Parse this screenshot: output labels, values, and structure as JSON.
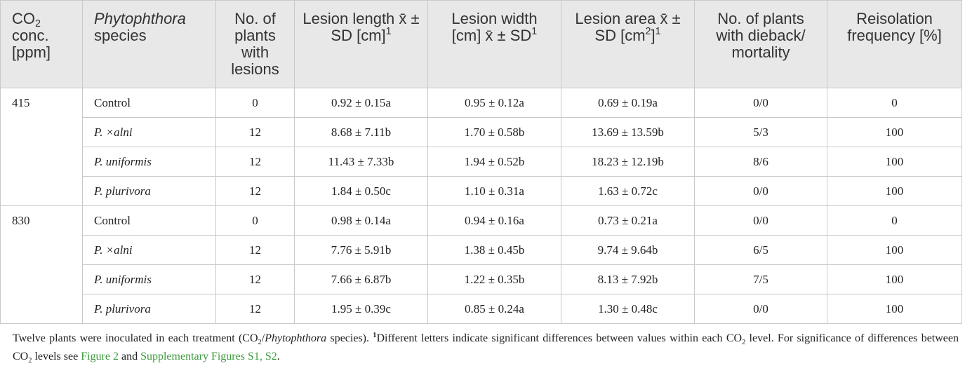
{
  "header": {
    "co2": [
      "CO",
      "2",
      " conc. [ppm]"
    ],
    "species": [
      "Phytophthora",
      " species"
    ],
    "plants": "No. of plants with lesions",
    "length": [
      "Lesion length x̄ ± SD [cm]",
      "1"
    ],
    "width": [
      "Lesion width [cm] x̄ ± SD",
      "1"
    ],
    "area": [
      "Lesion area x̄ ± SD [cm",
      "2",
      "]",
      "1"
    ],
    "dieback": "No. of plants with dieback/ mortality",
    "freq": "Reisolation frequency [%]"
  },
  "groups": [
    {
      "co2": "415",
      "rows": [
        [
          "Control",
          0,
          "0.92 ± 0.15a",
          "0.95 ± 0.12a",
          "0.69 ± 0.19a",
          "0/0",
          0
        ],
        [
          "P. ×alni",
          12,
          "8.68 ± 7.11b",
          "1.70 ± 0.58b",
          "13.69 ± 13.59b",
          "5/3",
          100
        ],
        [
          "P. uniformis",
          12,
          "11.43 ± 7.33b",
          "1.94 ± 0.52b",
          "18.23 ± 12.19b",
          "8/6",
          100
        ],
        [
          "P. plurivora",
          12,
          "1.84 ± 0.50c",
          "1.10 ± 0.31a",
          "1.63 ± 0.72c",
          "0/0",
          100
        ]
      ]
    },
    {
      "co2": "830",
      "rows": [
        [
          "Control",
          0,
          "0.98 ± 0.14a",
          "0.94 ± 0.16a",
          "0.73 ± 0.21a",
          "0/0",
          0
        ],
        [
          "P. ×alni",
          12,
          "7.76 ± 5.91b",
          "1.38 ± 0.45b",
          "9.74 ± 9.64b",
          "6/5",
          100
        ],
        [
          "P. uniformis",
          12,
          "7.66 ± 6.87b",
          "1.22 ± 0.35b",
          "8.13 ± 7.92b",
          "7/5",
          100
        ],
        [
          "P. plurivora",
          12,
          "1.95 ± 0.39c",
          "0.85 ± 0.24a",
          "1.30 ± 0.48c",
          "0/0",
          100
        ]
      ]
    }
  ],
  "footnote": [
    "Twelve plants were inoculated in each treatment (CO",
    "2",
    "/",
    "Phytophthora",
    " species). ",
    "1",
    "Different letters indicate significant differences between values within each CO",
    "2",
    " level. For significance of differences between CO",
    "2",
    " levels see ",
    "Figure 2",
    " and ",
    "Supplementary Figures S1, S2",
    "."
  ]
}
